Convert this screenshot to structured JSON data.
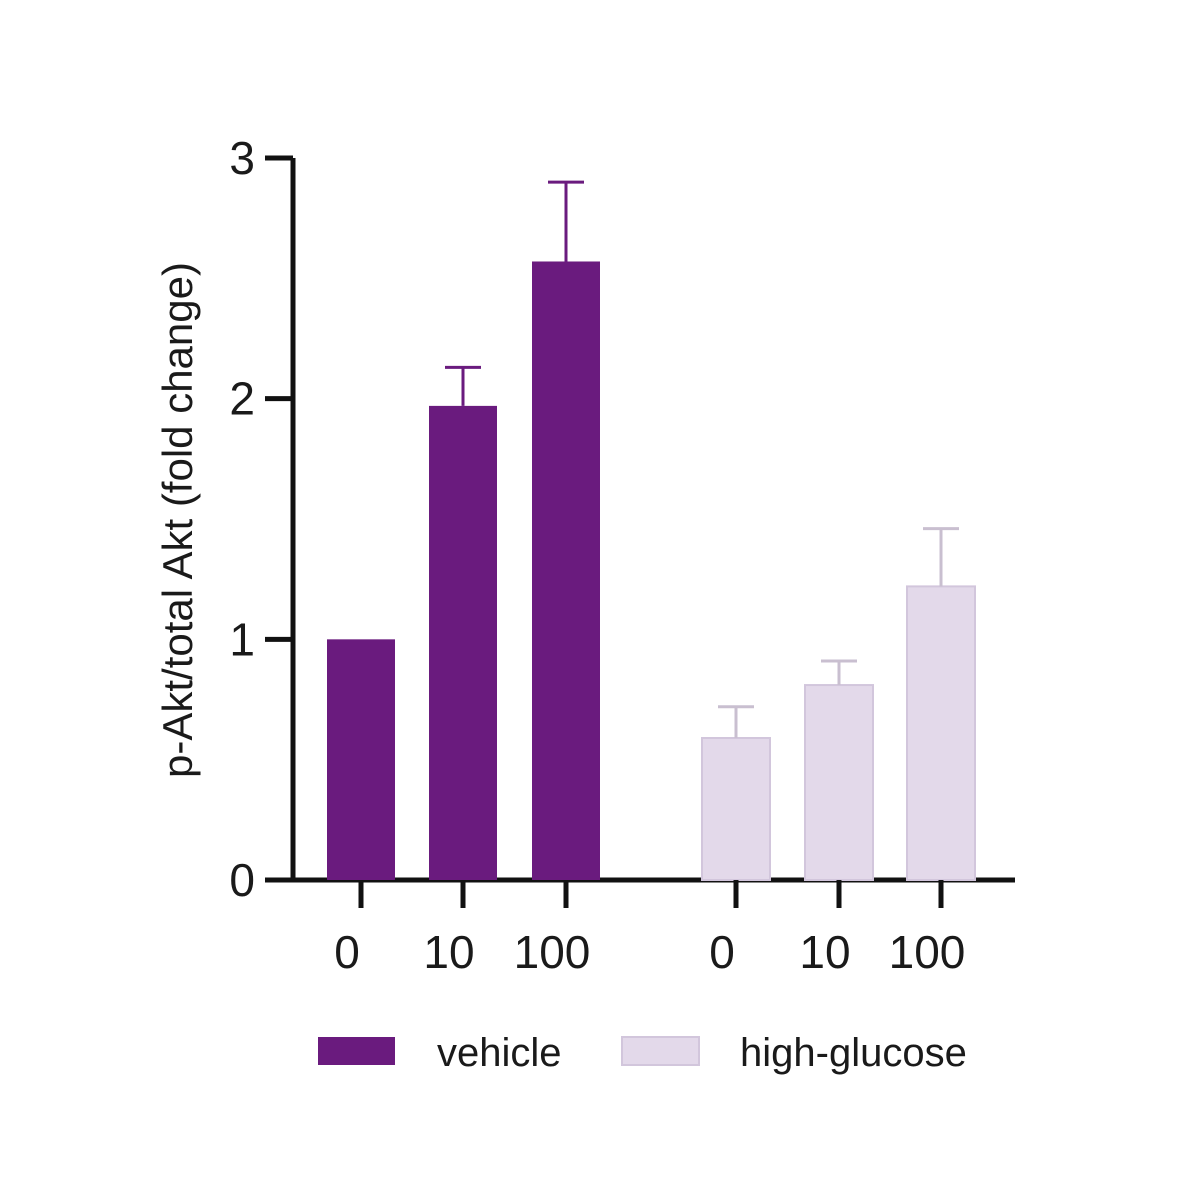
{
  "chart_data": {
    "type": "bar",
    "title": "",
    "xlabel": "",
    "ylabel": "p-Akt/total Akt (fold change)",
    "ylim": [
      0,
      3
    ],
    "yticks": [
      "0",
      "1",
      "2",
      "3"
    ],
    "grid": false,
    "legend_position": "bottom",
    "series": [
      {
        "name": "vehicle",
        "color": "#6a1b7e",
        "categories": [
          "0",
          "10",
          "100"
        ],
        "values": [
          1.0,
          1.97,
          2.57
        ],
        "errors": [
          0,
          0.16,
          0.33
        ]
      },
      {
        "name": "high-glucose",
        "color": "#e3d9ea",
        "categories": [
          "0",
          "10",
          "100"
        ],
        "values": [
          0.59,
          0.81,
          1.22
        ],
        "errors": [
          0.13,
          0.1,
          0.24
        ]
      }
    ]
  }
}
